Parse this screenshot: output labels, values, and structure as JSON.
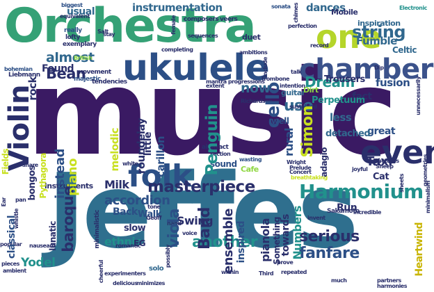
{
  "palette": {
    "dark_purple": "#440154",
    "indigo": "#3b528b",
    "slate_blue": "#31688e",
    "teal": "#21918c",
    "green": "#35b779",
    "lime": "#90d743",
    "yellow": "#c8e020",
    "navy": "#2a2f6b"
  },
  "words": {
    "music": "music",
    "jeffes": "Jeffes",
    "orchestra": "Orchestra",
    "ukulele": "ukulele",
    "chamber": "chamber",
    "one": "one",
    "violin": "Violin",
    "folk": "folk",
    "harmonium": "Harmonium",
    "even": "even",
    "masterpiece": "masterpiece",
    "string": "string",
    "instrumentation": "instrumentation",
    "dances": "dances",
    "almost": "almost",
    "bean": "Bean",
    "penguin": "Penguin",
    "cello": "cello",
    "dream": "Dream",
    "baroque": "baroque",
    "viola": "viola",
    "band": "Band",
    "ensemble": "ensemble",
    "serious": "serious",
    "fanfare": "fanfare",
    "another": "another",
    "ethnic": "ethnic",
    "instead": "instead",
    "piano": "piano",
    "accordion": "accordion",
    "numbers": "Numbers",
    "pianola": "pianola",
    "yodel": "Yodel",
    "classical": "classical",
    "simon": "Simon",
    "use": "use",
    "taxi": "Taxi",
    "now": "now",
    "rural": "rural",
    "swing": "Swing",
    "towards": "towards",
    "inspired": "inspired",
    "heartwind": "Heartwind",
    "perpetuum": "Perpetuum",
    "fusion": "fusion",
    "fact": "fact",
    "less": "less",
    "detached": "detached",
    "great": "great",
    "rock": "rock",
    "found": "Found",
    "usual": "usual",
    "melodic": "melodic",
    "roundelay": "roundelay",
    "carillon": "carillon",
    "little": "little",
    "back": "Back",
    "milk": "Milk",
    "trousers": "Trousers",
    "dirt": "Dirt",
    "guitar": "guitar",
    "inspiration": "inspiration",
    "fumble": "Fumble",
    "celtic": "Celtic",
    "mobile": "Mobile",
    "duet": "duet",
    "walk": "Walk",
    "instruments": "instruments",
    "slow": "slow",
    "bongos": "bongos",
    "pythagora": "Pythagora",
    "fields": "Fields",
    "run": "Run",
    "cat": "Cat",
    "adagio": "adagio",
    "sound": "sound",
    "something": "Something",
    "solo": "solo",
    "eg": "EG",
    "lunatic": "lunatic",
    "well": "well",
    "sakamoto": "Sakamoto",
    "cafe": "Cafe",
    "biggest": "biggest",
    "lofty": "lofty",
    "exemplary": "exemplary",
    "really": "really",
    "composers": "composers",
    "sonata": "sonata",
    "electronic": "Electronic",
    "movement": "movement",
    "majestic": "majestic",
    "tendencies": "tendencies",
    "liebmann": "Liebmann",
    "bohemian": "bohemian",
    "british": "British",
    "sequences": "sequences",
    "mantra_progressions": "mantra progressions",
    "richardson": "Richardson",
    "abstract": "abstract",
    "section": "section",
    "cheerful": "cheerful",
    "minimalistic": "minimalistic",
    "romantic": "romantic",
    "whistle": "whistle",
    "popular": "popular",
    "pieces": "pieces",
    "ambient": "ambient",
    "share": "share",
    "nauseam": "nauseam",
    "third": "Third",
    "repeated": "repeated",
    "invent": "invent",
    "voice": "voice",
    "prove": "prove",
    "much": "much",
    "partners": "partners",
    "harmonies": "harmonies",
    "delicious": "delicious",
    "minimizes": "minimizes",
    "within": "within",
    "geoff": "Geoff",
    "concert": "Concert",
    "breathtaking": "breathtaking",
    "incredible": "incredible",
    "wasting": "wasting",
    "sustained": "sustained",
    "talk": "talk",
    "trombone": "trombone",
    "intention": "intention",
    "record": "record",
    "dip": "Dip",
    "perfection": "perfection",
    "include": "include",
    "completing": "completing",
    "salt": "Salt",
    "stay": "stay",
    "geometries": "geometries",
    "unnecessarily": "unnecessarily",
    "structures": "structures",
    "joyful": "joyful",
    "sheep": "Sheep",
    "prelude": "Prelude",
    "wright": "Wright",
    "veers": "veers",
    "chimes": "chimes",
    "tone": "tone",
    "white": "white",
    "hand": "hand",
    "pan": "pan",
    "ear": "Ear",
    "extent": "extent",
    "female": "female",
    "minimalism": "minimalism",
    "experimenters": "experimenters",
    "possibly": "possibly",
    "ambitions": "ambitions",
    "sheets": "sheets",
    "equivalent": "equivalent"
  }
}
